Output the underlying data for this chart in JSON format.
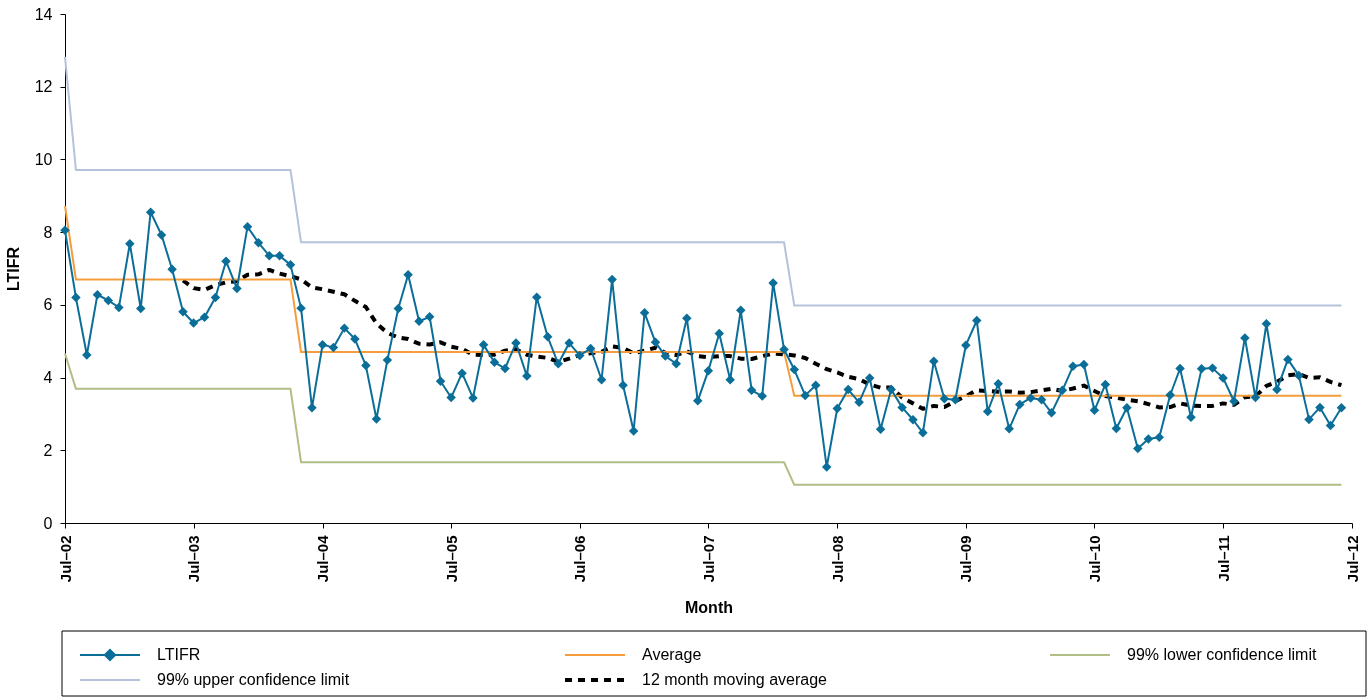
{
  "chart_data": {
    "type": "line",
    "xlabel": "Month",
    "ylabel": "LTIFR",
    "legend": "bottom",
    "x": [
      "2002-07",
      "2002-08",
      "2002-09",
      "2002-10",
      "2002-11",
      "2002-12",
      "2003-01",
      "2003-02",
      "2003-03",
      "2003-04",
      "2003-05",
      "2003-06",
      "2003-07",
      "2003-08",
      "2003-09",
      "2003-10",
      "2003-11",
      "2003-12",
      "2004-01",
      "2004-02",
      "2004-03",
      "2004-04",
      "2004-05",
      "2004-06",
      "2004-07",
      "2004-08",
      "2004-09",
      "2004-10",
      "2004-11",
      "2004-12",
      "2005-01",
      "2005-02",
      "2005-03",
      "2005-04",
      "2005-05",
      "2005-06",
      "2005-07",
      "2005-08",
      "2005-09",
      "2005-10",
      "2005-11",
      "2005-12",
      "2006-01",
      "2006-02",
      "2006-03",
      "2006-04",
      "2006-05",
      "2006-06",
      "2006-07",
      "2006-08",
      "2006-09",
      "2006-10",
      "2006-11",
      "2006-12",
      "2007-01",
      "2007-02",
      "2007-03",
      "2007-04",
      "2007-05",
      "2007-06",
      "2007-07",
      "2007-08",
      "2007-09",
      "2007-10",
      "2007-11",
      "2007-12",
      "2008-01",
      "2008-02",
      "2008-03",
      "2008-04",
      "2008-05",
      "2008-06",
      "2008-07",
      "2008-08",
      "2008-09",
      "2008-10",
      "2008-11",
      "2008-12",
      "2009-01",
      "2009-02",
      "2009-03",
      "2009-04",
      "2009-05",
      "2009-06",
      "2009-07",
      "2009-08",
      "2009-09",
      "2009-10",
      "2009-11",
      "2009-12",
      "2010-01",
      "2010-02",
      "2010-03",
      "2010-04",
      "2010-05",
      "2010-06",
      "2010-07",
      "2010-08",
      "2010-09",
      "2010-10",
      "2010-11",
      "2010-12",
      "2011-01",
      "2011-02",
      "2011-03",
      "2011-04",
      "2011-05",
      "2011-06",
      "2011-07",
      "2011-08",
      "2011-09",
      "2011-10",
      "2011-11",
      "2011-12",
      "2012-01",
      "2012-02",
      "2012-03",
      "2012-04",
      "2012-05",
      "2012-06"
    ],
    "xlim": [
      "2002-07",
      "2012-07"
    ],
    "xticks": [
      {
        "value": "2002-07",
        "label": "Jul–02"
      },
      {
        "value": "2003-07",
        "label": "Jul–03"
      },
      {
        "value": "2004-07",
        "label": "Jul–04"
      },
      {
        "value": "2005-07",
        "label": "Jul–05"
      },
      {
        "value": "2006-07",
        "label": "Jul–06"
      },
      {
        "value": "2007-07",
        "label": "Jul–07"
      },
      {
        "value": "2008-07",
        "label": "Jul–08"
      },
      {
        "value": "2009-07",
        "label": "Jul–09"
      },
      {
        "value": "2010-07",
        "label": "Jul–10"
      },
      {
        "value": "2011-07",
        "label": "Jul–11"
      },
      {
        "value": "2012-07",
        "label": "Jul–12"
      }
    ],
    "ylim": [
      0,
      14
    ],
    "yticks": [
      0,
      2,
      4,
      6,
      8,
      10,
      12,
      14
    ],
    "series": [
      {
        "name": "LTIFR",
        "color": "#0b6e99",
        "marker": "diamond",
        "values": [
          8.05,
          6.2,
          4.62,
          6.28,
          6.12,
          5.93,
          7.68,
          5.9,
          8.55,
          7.92,
          6.98,
          5.81,
          5.5,
          5.66,
          6.2,
          7.2,
          6.45,
          8.15,
          7.71,
          7.35,
          7.35,
          7.1,
          5.91,
          3.17,
          4.9,
          4.83,
          5.36,
          5.06,
          4.33,
          2.86,
          4.48,
          5.9,
          6.83,
          5.55,
          5.67,
          3.9,
          3.45,
          4.12,
          3.44,
          4.9,
          4.42,
          4.25,
          4.95,
          4.04,
          6.21,
          5.12,
          4.38,
          4.95,
          4.61,
          4.8,
          3.94,
          6.7,
          3.79,
          2.53,
          5.78,
          4.97,
          4.59,
          4.38,
          5.63,
          3.36,
          4.19,
          5.21,
          3.94,
          5.85,
          3.65,
          3.49,
          6.6,
          4.77,
          4.22,
          3.51,
          3.79,
          1.54,
          3.15,
          3.67,
          3.32,
          3.99,
          2.58,
          3.67,
          3.18,
          2.84,
          2.48,
          4.45,
          3.42,
          3.39,
          4.89,
          5.57,
          3.07,
          3.83,
          2.59,
          3.26,
          3.44,
          3.39,
          3.03,
          3.65,
          4.31,
          4.36,
          3.1,
          3.81,
          2.6,
          3.17,
          2.05,
          2.31,
          2.36,
          3.52,
          4.25,
          2.91,
          4.24,
          4.26,
          3.99,
          3.35,
          5.09,
          3.45,
          5.48,
          3.67,
          4.5,
          4.06,
          2.85,
          3.18,
          2.68,
          3.17
        ]
      },
      {
        "name": "Average",
        "color": "#f59d3d",
        "values": [
          8.72,
          6.7,
          6.7,
          6.7,
          6.7,
          6.7,
          6.7,
          6.7,
          6.7,
          6.7,
          6.7,
          6.7,
          6.7,
          6.7,
          6.7,
          6.7,
          6.7,
          6.7,
          6.7,
          6.7,
          6.7,
          6.7,
          4.7,
          4.7,
          4.7,
          4.7,
          4.7,
          4.7,
          4.7,
          4.7,
          4.7,
          4.7,
          4.7,
          4.7,
          4.7,
          4.7,
          4.7,
          4.7,
          4.7,
          4.7,
          4.7,
          4.7,
          4.7,
          4.7,
          4.7,
          4.7,
          4.7,
          4.7,
          4.7,
          4.7,
          4.7,
          4.7,
          4.7,
          4.7,
          4.7,
          4.7,
          4.7,
          4.7,
          4.7,
          4.7,
          4.7,
          4.7,
          4.7,
          4.7,
          4.7,
          4.7,
          4.7,
          4.7,
          3.5,
          3.5,
          3.5,
          3.5,
          3.5,
          3.5,
          3.5,
          3.5,
          3.5,
          3.5,
          3.5,
          3.5,
          3.5,
          3.5,
          3.5,
          3.5,
          3.5,
          3.5,
          3.5,
          3.5,
          3.5,
          3.5,
          3.5,
          3.5,
          3.5,
          3.5,
          3.5,
          3.5,
          3.5,
          3.5,
          3.5,
          3.5,
          3.5,
          3.5,
          3.5,
          3.5,
          3.5,
          3.5,
          3.5,
          3.5,
          3.5,
          3.5,
          3.5,
          3.5,
          3.5,
          3.5,
          3.5,
          3.5,
          3.5,
          3.5,
          3.5,
          3.5
        ]
      },
      {
        "name": "99% lower confidence limit",
        "color": "#b1bf86",
        "values": [
          4.66,
          3.69,
          3.69,
          3.69,
          3.69,
          3.69,
          3.69,
          3.69,
          3.69,
          3.69,
          3.69,
          3.69,
          3.69,
          3.69,
          3.69,
          3.69,
          3.69,
          3.69,
          3.69,
          3.69,
          3.69,
          3.69,
          1.67,
          1.67,
          1.67,
          1.67,
          1.67,
          1.67,
          1.67,
          1.67,
          1.67,
          1.67,
          1.67,
          1.67,
          1.67,
          1.67,
          1.67,
          1.67,
          1.67,
          1.67,
          1.67,
          1.67,
          1.67,
          1.67,
          1.67,
          1.67,
          1.67,
          1.67,
          1.67,
          1.67,
          1.67,
          1.67,
          1.67,
          1.67,
          1.67,
          1.67,
          1.67,
          1.67,
          1.67,
          1.67,
          1.67,
          1.67,
          1.67,
          1.67,
          1.67,
          1.67,
          1.67,
          1.67,
          1.05,
          1.05,
          1.05,
          1.05,
          1.05,
          1.05,
          1.05,
          1.05,
          1.05,
          1.05,
          1.05,
          1.05,
          1.05,
          1.05,
          1.05,
          1.05,
          1.05,
          1.05,
          1.05,
          1.05,
          1.05,
          1.05,
          1.05,
          1.05,
          1.05,
          1.05,
          1.05,
          1.05,
          1.05,
          1.05,
          1.05,
          1.05,
          1.05,
          1.05,
          1.05,
          1.05,
          1.05,
          1.05,
          1.05,
          1.05,
          1.05,
          1.05,
          1.05,
          1.05,
          1.05,
          1.05,
          1.05,
          1.05,
          1.05,
          1.05,
          1.05,
          1.05
        ]
      },
      {
        "name": "99% upper confidence limit",
        "color": "#b4c3da",
        "values": [
          12.82,
          9.71,
          9.71,
          9.71,
          9.71,
          9.71,
          9.71,
          9.71,
          9.71,
          9.71,
          9.71,
          9.71,
          9.71,
          9.71,
          9.71,
          9.71,
          9.71,
          9.71,
          9.71,
          9.71,
          9.71,
          9.71,
          7.72,
          7.72,
          7.72,
          7.72,
          7.72,
          7.72,
          7.72,
          7.72,
          7.72,
          7.72,
          7.72,
          7.72,
          7.72,
          7.72,
          7.72,
          7.72,
          7.72,
          7.72,
          7.72,
          7.72,
          7.72,
          7.72,
          7.72,
          7.72,
          7.72,
          7.72,
          7.72,
          7.72,
          7.72,
          7.72,
          7.72,
          7.72,
          7.72,
          7.72,
          7.72,
          7.72,
          7.72,
          7.72,
          7.72,
          7.72,
          7.72,
          7.72,
          7.72,
          7.72,
          7.72,
          7.72,
          5.98,
          5.98,
          5.98,
          5.98,
          5.98,
          5.98,
          5.98,
          5.98,
          5.98,
          5.98,
          5.98,
          5.98,
          5.98,
          5.98,
          5.98,
          5.98,
          5.98,
          5.98,
          5.98,
          5.98,
          5.98,
          5.98,
          5.98,
          5.98,
          5.98,
          5.98,
          5.98,
          5.98,
          5.98,
          5.98,
          5.98,
          5.98,
          5.98,
          5.98,
          5.98,
          5.98,
          5.98,
          5.98,
          5.98,
          5.98,
          5.98,
          5.98,
          5.98,
          5.98,
          5.98,
          5.98,
          5.98,
          5.98,
          5.98,
          5.98,
          5.98,
          5.98
        ]
      },
      {
        "name": "12 month moving average",
        "color": "#000000",
        "line_style": "dashed",
        "values": [
          null,
          null,
          null,
          null,
          null,
          null,
          null,
          null,
          null,
          null,
          null,
          6.67,
          6.46,
          6.41,
          6.54,
          6.62,
          6.65,
          6.83,
          6.84,
          6.96,
          6.86,
          6.79,
          6.7,
          6.48,
          6.43,
          6.36,
          6.29,
          6.11,
          5.94,
          5.49,
          5.23,
          5.1,
          5.06,
          4.93,
          4.91,
          4.97,
          4.85,
          4.79,
          4.63,
          4.62,
          4.63,
          4.74,
          4.78,
          4.63,
          4.58,
          4.54,
          4.43,
          4.52,
          4.62,
          4.67,
          4.71,
          4.86,
          4.81,
          4.67,
          4.74,
          4.82,
          4.68,
          4.62,
          4.72,
          4.59,
          4.56,
          4.59,
          4.59,
          4.52,
          4.51,
          4.59,
          4.66,
          4.64,
          4.61,
          4.54,
          4.38,
          4.23,
          4.14,
          4.02,
          3.96,
          3.81,
          3.72,
          3.73,
          3.45,
          3.29,
          3.14,
          3.22,
          3.19,
          3.35,
          3.49,
          3.65,
          3.63,
          3.61,
          3.62,
          3.58,
          3.6,
          3.65,
          3.69,
          3.63,
          3.7,
          3.78,
          3.63,
          3.49,
          3.45,
          3.39,
          3.35,
          3.27,
          3.18,
          3.19,
          3.29,
          3.23,
          3.22,
          3.22,
          3.29,
          3.25,
          3.46,
          3.48,
          3.77,
          3.88,
          4.06,
          4.1,
          3.99,
          4.01,
          3.88,
          3.79
        ]
      }
    ]
  }
}
